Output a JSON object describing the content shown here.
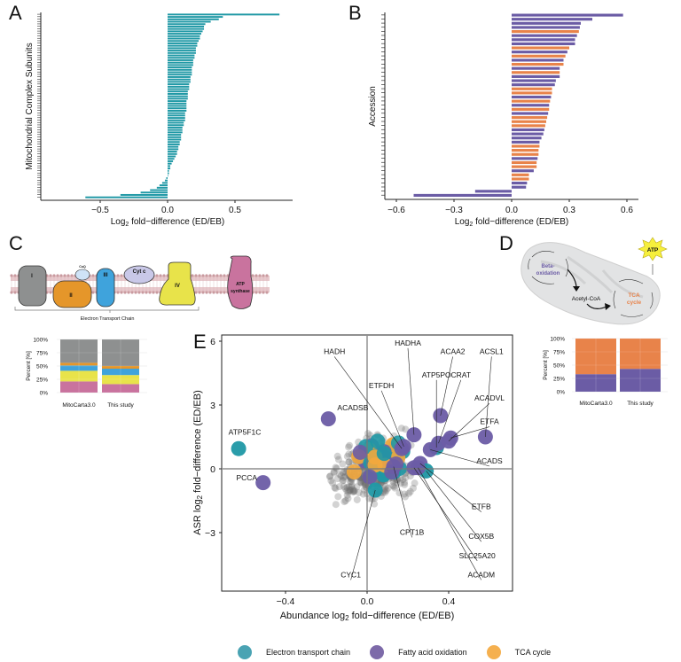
{
  "panels": {
    "A": "A",
    "B": "B",
    "C": "C",
    "D": "D",
    "E": "E"
  },
  "colors": {
    "etc": "#1f98a5",
    "fao": "#6b5ca5",
    "tca": "#f3a93d",
    "tca_bar": "#e8834a",
    "grey": "#8c8c8c",
    "complexI": "#8e9090",
    "complexII": "#e5962a",
    "complexIII": "#3fa3dc",
    "complexIV": "#e8e34a",
    "atp_synthase": "#c9739e"
  },
  "diagram_c": {
    "labels": [
      "I",
      "II",
      "CoQ",
      "III",
      "Cyt c",
      "IV",
      "ATP synthase"
    ],
    "bracket_label": "Electron Transport Chain"
  },
  "diagram_d": {
    "beta_label": "Beta-oxidation",
    "acetyl_label": "Acetyl-CoA",
    "tca_label": "TCA cycle",
    "atp_label": "ATP"
  },
  "chart_data": [
    {
      "id": "A",
      "type": "bar",
      "orientation": "horizontal",
      "title": "",
      "xlabel": "Log2 fold-difference (ED/EB)",
      "ylabel": "Mitochondrial Complex Subunits",
      "xlim": [
        -0.9,
        0.9
      ],
      "xticks": [
        -0.5,
        0.0,
        0.5
      ],
      "xtick_labels": [
        "−0.5",
        "0.0",
        "0.5"
      ],
      "color": "#1f98a5",
      "values": [
        0.83,
        0.41,
        0.38,
        0.32,
        0.28,
        0.27,
        0.27,
        0.26,
        0.25,
        0.24,
        0.24,
        0.23,
        0.22,
        0.22,
        0.21,
        0.21,
        0.21,
        0.2,
        0.2,
        0.19,
        0.19,
        0.19,
        0.18,
        0.18,
        0.18,
        0.18,
        0.17,
        0.17,
        0.17,
        0.16,
        0.16,
        0.16,
        0.15,
        0.15,
        0.15,
        0.15,
        0.14,
        0.14,
        0.14,
        0.14,
        0.14,
        0.13,
        0.13,
        0.13,
        0.13,
        0.12,
        0.12,
        0.11,
        0.11,
        0.11,
        0.1,
        0.1,
        0.1,
        0.09,
        0.09,
        0.08,
        0.08,
        0.07,
        0.07,
        0.06,
        0.05,
        0.04,
        0.03,
        0.02,
        0.02,
        0.01,
        0.01,
        0.0,
        -0.01,
        -0.02,
        -0.04,
        -0.06,
        -0.08,
        -0.13,
        -0.2,
        -0.35,
        -0.61
      ]
    },
    {
      "id": "B",
      "type": "bar",
      "orientation": "horizontal",
      "title": "",
      "xlabel": "Log2 fold-difference (ED/EB)",
      "ylabel": "Accession",
      "xlim": [
        -0.66,
        0.66
      ],
      "xticks": [
        -0.6,
        -0.3,
        0.0,
        0.3,
        0.6
      ],
      "xtick_labels": [
        "−0.6",
        "−0.3",
        "0.0",
        "0.3",
        "0.6"
      ],
      "series_names": {
        "fao": "Fatty acid oxidation",
        "tca": "TCA cycle"
      },
      "bars": [
        {
          "value": 0.58,
          "group": "fao"
        },
        {
          "value": 0.42,
          "group": "fao"
        },
        {
          "value": 0.36,
          "group": "fao"
        },
        {
          "value": 0.355,
          "group": "fao"
        },
        {
          "value": 0.35,
          "group": "tca"
        },
        {
          "value": 0.34,
          "group": "fao"
        },
        {
          "value": 0.33,
          "group": "fao"
        },
        {
          "value": 0.33,
          "group": "fao"
        },
        {
          "value": 0.3,
          "group": "tca"
        },
        {
          "value": 0.29,
          "group": "fao"
        },
        {
          "value": 0.28,
          "group": "tca"
        },
        {
          "value": 0.27,
          "group": "fao"
        },
        {
          "value": 0.27,
          "group": "tca"
        },
        {
          "value": 0.25,
          "group": "fao"
        },
        {
          "value": 0.25,
          "group": "tca"
        },
        {
          "value": 0.25,
          "group": "fao"
        },
        {
          "value": 0.23,
          "group": "fao"
        },
        {
          "value": 0.225,
          "group": "fao"
        },
        {
          "value": 0.21,
          "group": "tca"
        },
        {
          "value": 0.21,
          "group": "tca"
        },
        {
          "value": 0.205,
          "group": "fao"
        },
        {
          "value": 0.2,
          "group": "tca"
        },
        {
          "value": 0.195,
          "group": "fao"
        },
        {
          "value": 0.195,
          "group": "tca"
        },
        {
          "value": 0.19,
          "group": "fao"
        },
        {
          "value": 0.185,
          "group": "tca"
        },
        {
          "value": 0.18,
          "group": "tca"
        },
        {
          "value": 0.175,
          "group": "tca"
        },
        {
          "value": 0.17,
          "group": "fao"
        },
        {
          "value": 0.165,
          "group": "fao"
        },
        {
          "value": 0.155,
          "group": "fao"
        },
        {
          "value": 0.145,
          "group": "fao"
        },
        {
          "value": 0.145,
          "group": "tca"
        },
        {
          "value": 0.14,
          "group": "tca"
        },
        {
          "value": 0.14,
          "group": "tca"
        },
        {
          "value": 0.135,
          "group": "fao"
        },
        {
          "value": 0.13,
          "group": "tca"
        },
        {
          "value": 0.13,
          "group": "tca"
        },
        {
          "value": 0.115,
          "group": "fao"
        },
        {
          "value": 0.09,
          "group": "tca"
        },
        {
          "value": 0.09,
          "group": "tca"
        },
        {
          "value": 0.08,
          "group": "fao"
        },
        {
          "value": 0.075,
          "group": "fao"
        },
        {
          "value": -0.19,
          "group": "fao"
        },
        {
          "value": -0.51,
          "group": "fao"
        }
      ]
    },
    {
      "id": "C-stacked",
      "type": "bar",
      "stacked": true,
      "ylabel": "Percent [%]",
      "ylim": [
        0,
        100
      ],
      "yticks": [
        0,
        25,
        50,
        75,
        100
      ],
      "ytick_labels": [
        "0%",
        "25%",
        "50%",
        "75%",
        "100%"
      ],
      "categories": [
        "MitoCarta3.0",
        "This study"
      ],
      "series": [
        {
          "name": "ATP synthase",
          "color": "#c9739e",
          "values": [
            21,
            16
          ]
        },
        {
          "name": "Complex IV",
          "color": "#e8e34a",
          "values": [
            20,
            17
          ]
        },
        {
          "name": "Complex III",
          "color": "#3fa3dc",
          "values": [
            10,
            12
          ]
        },
        {
          "name": "Complex II",
          "color": "#e5962a",
          "values": [
            5,
            5
          ]
        },
        {
          "name": "Complex I",
          "color": "#8e9090",
          "values": [
            44,
            50
          ]
        }
      ]
    },
    {
      "id": "D-stacked",
      "type": "bar",
      "stacked": true,
      "ylabel": "Percent [%]",
      "ylim": [
        0,
        100
      ],
      "yticks": [
        0,
        25,
        50,
        75,
        100
      ],
      "ytick_labels": [
        "0%",
        "25%",
        "50%",
        "75%",
        "100%"
      ],
      "categories": [
        "MitoCarta3.0",
        "This study"
      ],
      "series": [
        {
          "name": "Fatty acid oxidation",
          "color": "#6b5ca5",
          "values": [
            33,
            43
          ]
        },
        {
          "name": "TCA cycle",
          "color": "#e8834a",
          "values": [
            67,
            57
          ]
        }
      ]
    },
    {
      "id": "E",
      "type": "scatter",
      "xlabel": "Abundance log2 fold-difference (ED/EB)",
      "ylabel": "ASR log2 fold-difference (ED/EB)",
      "xlim": [
        -0.7,
        0.72
      ],
      "ylim": [
        -6.0,
        6.3
      ],
      "xticks": [
        -0.4,
        0.0,
        0.4
      ],
      "xtick_labels": [
        "−0.4",
        "0.0",
        "0.4"
      ],
      "yticks": [
        -3,
        0,
        3,
        6
      ],
      "ytick_labels": [
        "−3",
        "0",
        "3",
        "6"
      ],
      "legend": [
        {
          "name": "Electron transport chain",
          "color": "#1f98a5"
        },
        {
          "name": "Fatty acid oxidation",
          "color": "#6b5ca5"
        },
        {
          "name": "TCA cycle",
          "color": "#f3a93d"
        }
      ],
      "legend_position": "bottom",
      "labeled_points": [
        {
          "label": "ATP5F1C",
          "x": -0.63,
          "y": 0.95,
          "group": "etc",
          "lx": -0.6,
          "ly": 1.6
        },
        {
          "label": "PCCA",
          "x": -0.51,
          "y": -0.65,
          "group": "fao",
          "lx": -0.59,
          "ly": -0.55
        },
        {
          "label": "ACADSB",
          "x": -0.19,
          "y": 2.35,
          "group": "fao",
          "lx": -0.07,
          "ly": 2.75
        },
        {
          "label": "HADH",
          "x": 0.17,
          "y": 0.95,
          "group": "fao",
          "lx": -0.16,
          "ly": 5.4
        },
        {
          "label": "HADHA",
          "x": 0.23,
          "y": 1.6,
          "group": "fao",
          "lx": 0.2,
          "ly": 5.8
        },
        {
          "label": "ETFDH",
          "x": 0.18,
          "y": 1.05,
          "group": "fao",
          "lx": 0.07,
          "ly": 3.8
        },
        {
          "label": "ACAA2",
          "x": 0.36,
          "y": 2.5,
          "group": "fao",
          "lx": 0.42,
          "ly": 5.4
        },
        {
          "label": "ATP5PO",
          "x": 0.34,
          "y": 1.0,
          "group": "etc",
          "lx": 0.34,
          "ly": 4.3
        },
        {
          "label": "CRAT",
          "x": 0.35,
          "y": 1.2,
          "group": "fao",
          "lx": 0.46,
          "ly": 4.3
        },
        {
          "label": "ACSL1",
          "x": 0.58,
          "y": 1.5,
          "group": "fao",
          "lx": 0.61,
          "ly": 5.4
        },
        {
          "label": "ACADVL",
          "x": 0.4,
          "y": 1.3,
          "group": "fao",
          "lx": 0.6,
          "ly": 3.2
        },
        {
          "label": "ETFA",
          "x": 0.41,
          "y": 1.45,
          "group": "fao",
          "lx": 0.6,
          "ly": 2.1
        },
        {
          "label": "ACADS",
          "x": 0.31,
          "y": 0.9,
          "group": "fao",
          "lx": 0.6,
          "ly": 0.25
        },
        {
          "label": "ETFB",
          "x": 0.26,
          "y": 0.25,
          "group": "fao",
          "lx": 0.56,
          "ly": -1.9
        },
        {
          "label": "COX5B",
          "x": 0.29,
          "y": -0.1,
          "group": "etc",
          "lx": 0.56,
          "ly": -3.3
        },
        {
          "label": "CPT1B",
          "x": 0.13,
          "y": 0.1,
          "group": "fao",
          "lx": 0.22,
          "ly": -3.1
        },
        {
          "label": "SLC25A20",
          "x": 0.23,
          "y": 0.05,
          "group": "fao",
          "lx": 0.54,
          "ly": -4.2
        },
        {
          "label": "ACADM",
          "x": 0.25,
          "y": 0.05,
          "group": "fao",
          "lx": 0.56,
          "ly": -5.1
        },
        {
          "label": "CYC1",
          "x": 0.04,
          "y": -1.0,
          "group": "etc",
          "lx": -0.08,
          "ly": -5.1
        }
      ]
    }
  ]
}
